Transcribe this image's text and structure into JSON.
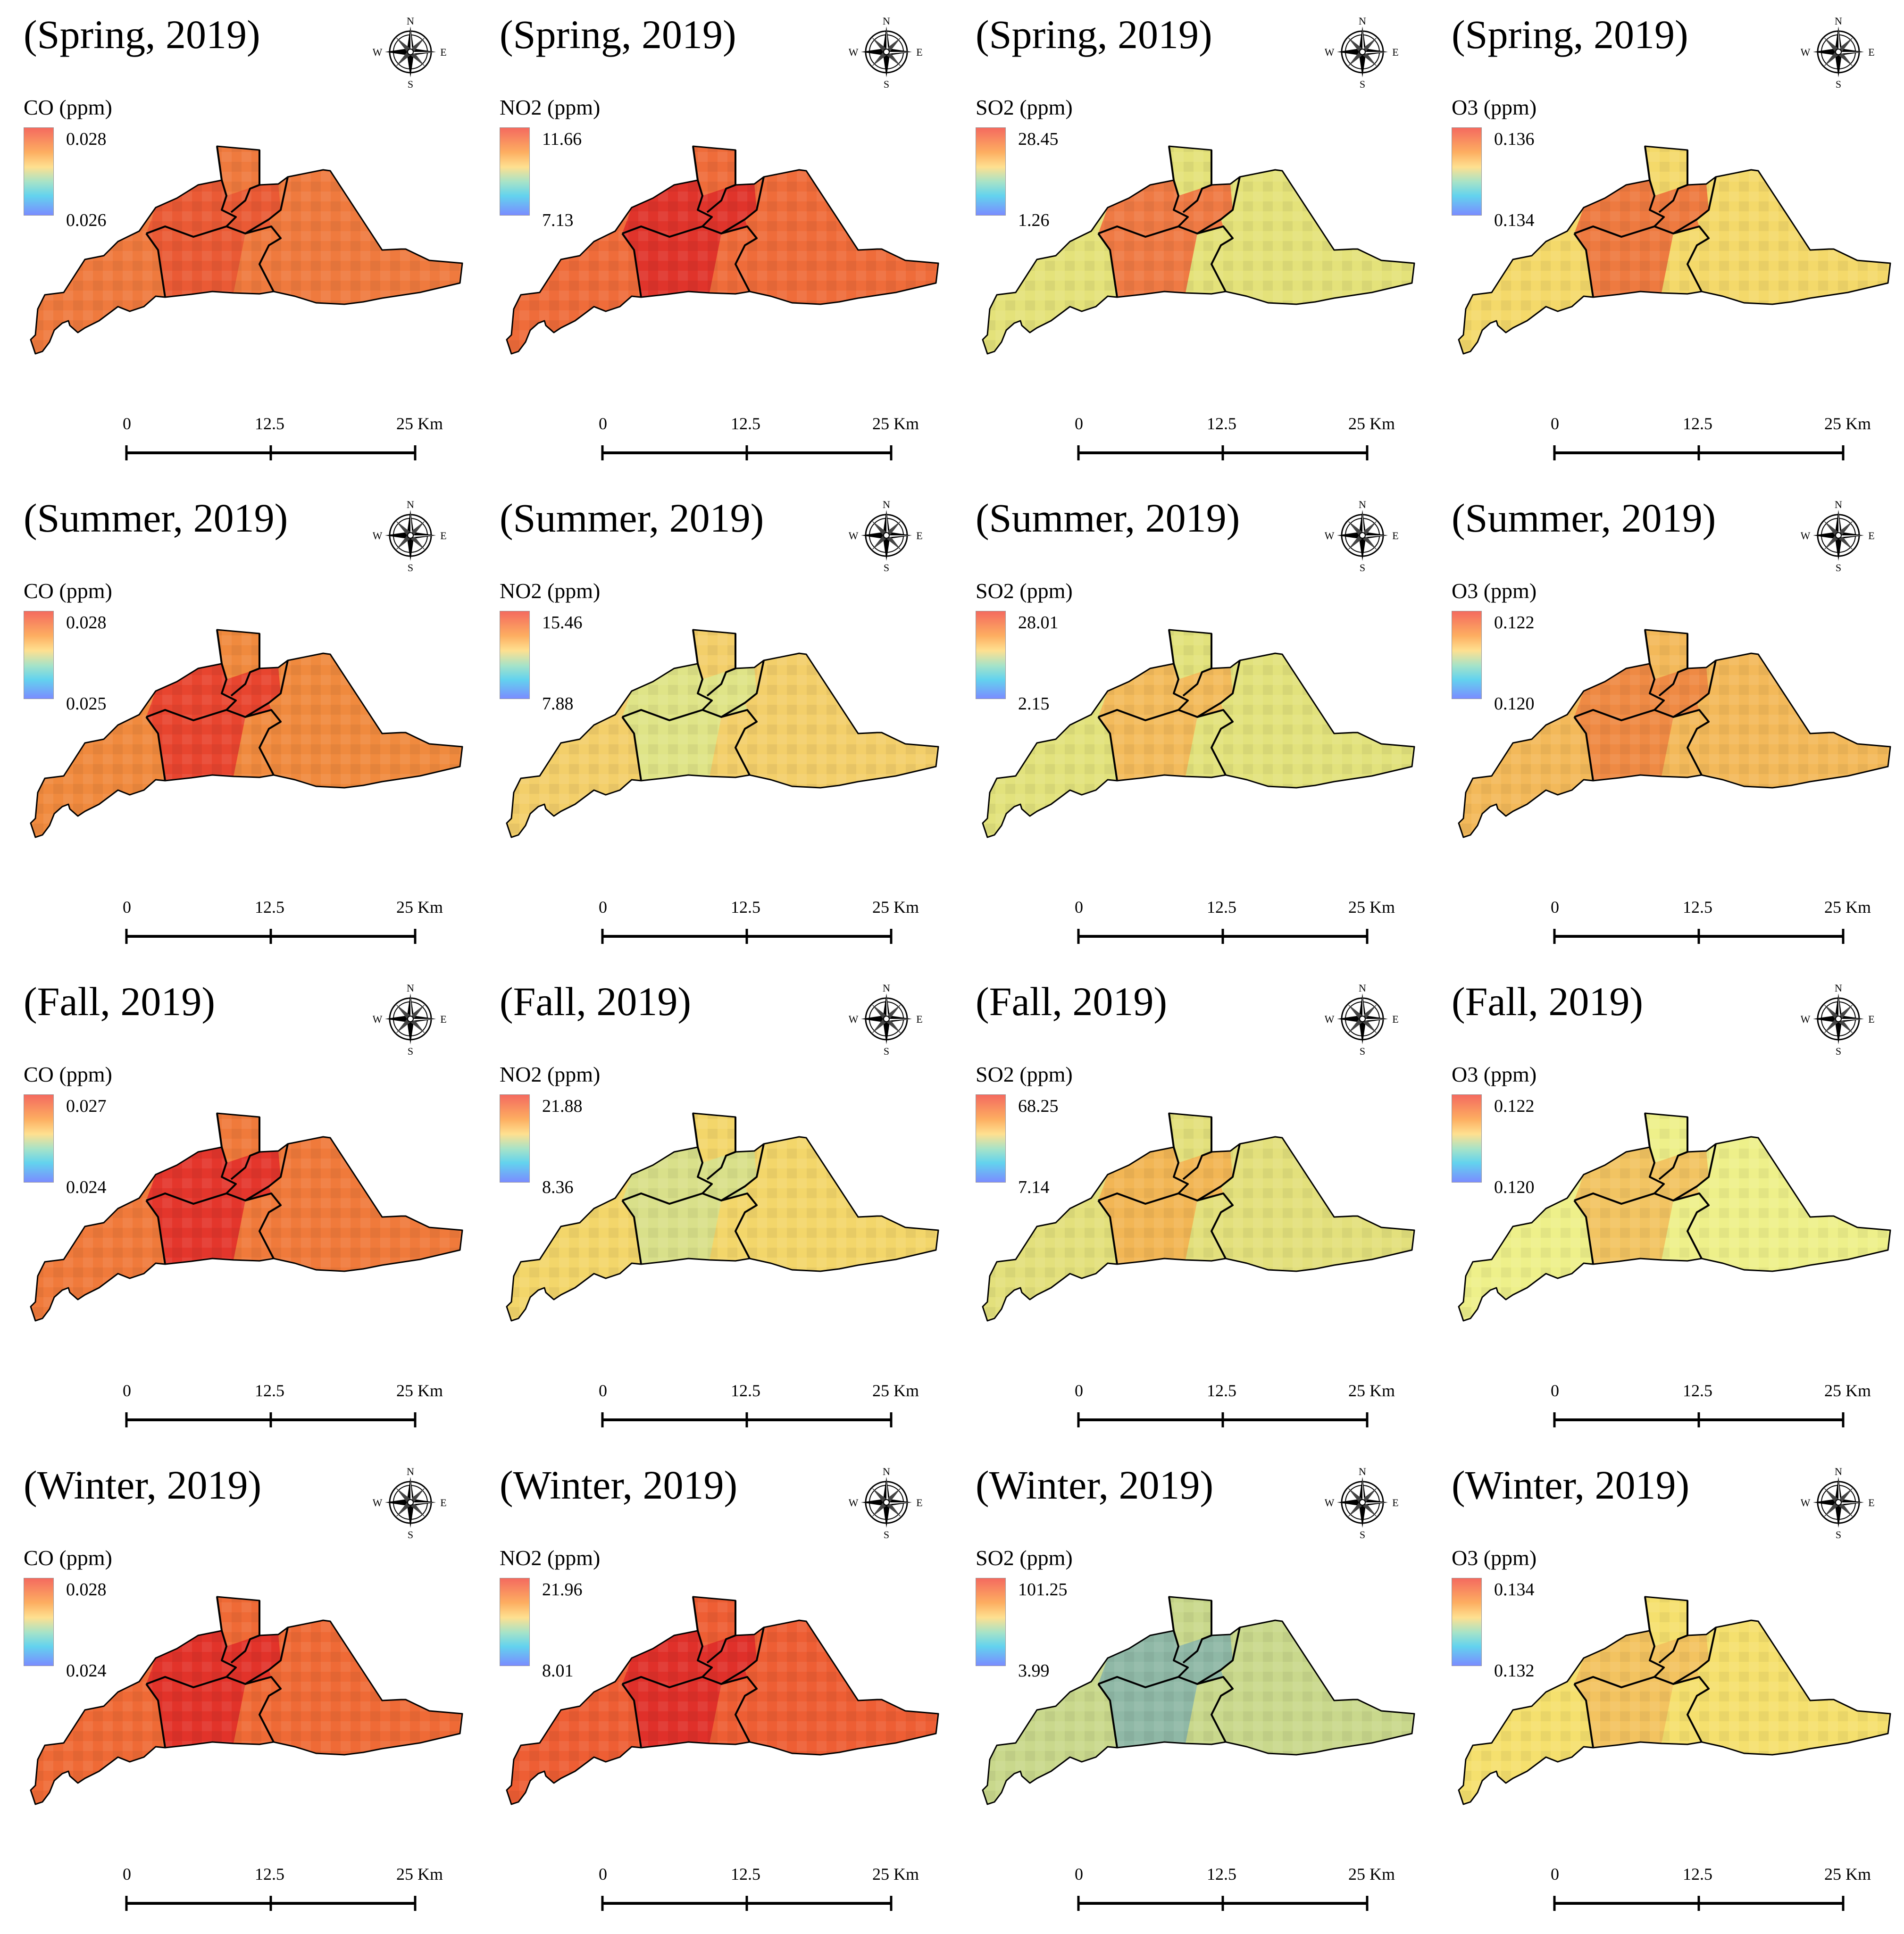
{
  "compass": {
    "n": "N",
    "s": "S",
    "e": "E",
    "w": "W"
  },
  "scalebar": {
    "zero": "0",
    "mid": "12.5",
    "end": "25 Km"
  },
  "colors": {
    "high": "#e8302a",
    "orange": "#f1803f",
    "yellow": "#f5e86e",
    "green": "#cfd98a",
    "teal": "#8fb6a3",
    "blue": "#6f9fc0"
  },
  "panels": [
    {
      "title": "(Spring, 2019)",
      "pollutant": "CO (ppm)",
      "max": "0.028",
      "min": "0.026",
      "tint": "#ef7a3e",
      "district_tint": "#ea5a35"
    },
    {
      "title": "(Spring, 2019)",
      "pollutant": "NO2 (ppm)",
      "max": "11.66",
      "min": "7.13",
      "tint": "#ef6c3a",
      "district_tint": "#e0342b"
    },
    {
      "title": "(Spring, 2019)",
      "pollutant": "SO2 (ppm)",
      "max": "28.45",
      "min": "1.26",
      "tint": "#e4e27a",
      "district_tint": "#ef7a44"
    },
    {
      "title": "(Spring, 2019)",
      "pollutant": "O3 (ppm)",
      "max": "0.136",
      "min": "0.134",
      "tint": "#f4d96a",
      "district_tint": "#ee7a40"
    },
    {
      "title": "(Summer, 2019)",
      "pollutant": "CO (ppm)",
      "max": "0.028",
      "min": "0.025",
      "tint": "#f08a3e",
      "district_tint": "#e8452f"
    },
    {
      "title": "(Summer, 2019)",
      "pollutant": "NO2 (ppm)",
      "max": "15.46",
      "min": "7.88",
      "tint": "#f3cf6a",
      "district_tint": "#dfe487"
    },
    {
      "title": "(Summer, 2019)",
      "pollutant": "SO2 (ppm)",
      "max": "28.01",
      "min": "2.15",
      "tint": "#e2e27c",
      "district_tint": "#f3bb5c"
    },
    {
      "title": "(Summer, 2019)",
      "pollutant": "O3 (ppm)",
      "max": "0.122",
      "min": "0.120",
      "tint": "#f3b95a",
      "district_tint": "#ef8a44"
    },
    {
      "title": "(Fall, 2019)",
      "pollutant": "CO (ppm)",
      "max": "0.027",
      "min": "0.024",
      "tint": "#f07a3b",
      "district_tint": "#e4362c"
    },
    {
      "title": "(Fall, 2019)",
      "pollutant": "NO2 (ppm)",
      "max": "21.88",
      "min": "8.36",
      "tint": "#f3d66a",
      "district_tint": "#d9e08a"
    },
    {
      "title": "(Fall, 2019)",
      "pollutant": "SO2 (ppm)",
      "max": "68.25",
      "min": "7.14",
      "tint": "#e3e07c",
      "district_tint": "#f2b655"
    },
    {
      "title": "(Fall, 2019)",
      "pollutant": "O3 (ppm)",
      "max": "0.122",
      "min": "0.120",
      "tint": "#eef08a",
      "district_tint": "#f2c462"
    },
    {
      "title": "(Winter, 2019)",
      "pollutant": "CO (ppm)",
      "max": "0.028",
      "min": "0.024",
      "tint": "#ef6a36",
      "district_tint": "#e2332a"
    },
    {
      "title": "(Winter, 2019)",
      "pollutant": "NO2 (ppm)",
      "max": "21.96",
      "min": "8.01",
      "tint": "#ee5e34",
      "district_tint": "#e0302a"
    },
    {
      "title": "(Winter, 2019)",
      "pollutant": "SO2 (ppm)",
      "max": "101.25",
      "min": "3.99",
      "tint": "#c9d88c",
      "district_tint": "#8fb8a6"
    },
    {
      "title": "(Winter, 2019)",
      "pollutant": "O3 (ppm)",
      "max": "0.134",
      "min": "0.132",
      "tint": "#f5e06e",
      "district_tint": "#f3c360"
    }
  ]
}
